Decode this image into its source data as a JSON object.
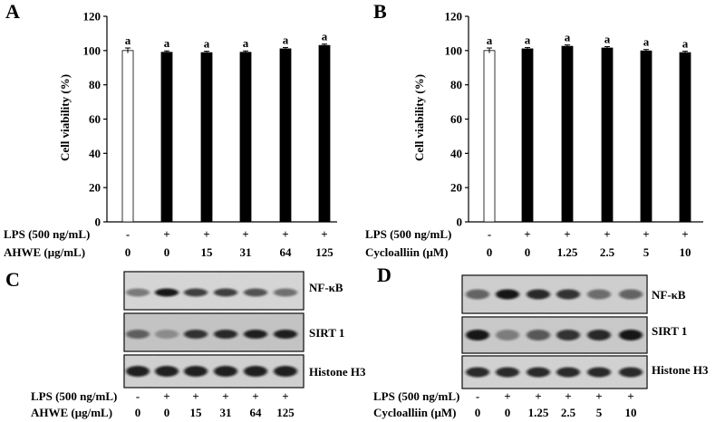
{
  "panels": {
    "A": {
      "letter": "A",
      "lps_label": "LPS (500 ng/mL)",
      "lps": [
        "-",
        "+",
        "+",
        "+",
        "+",
        "+"
      ],
      "treat_label": "AHWE (μg/mL)",
      "treat": [
        "0",
        "0",
        "15",
        "31",
        "64",
        "125"
      ]
    },
    "B": {
      "letter": "B",
      "lps_label": "LPS (500 ng/mL)",
      "lps": [
        "-",
        "+",
        "+",
        "+",
        "+",
        "+"
      ],
      "treat_label": "Cycloalliin (μM)",
      "treat": [
        "0",
        "0",
        "1.25",
        "2.5",
        "5",
        "10"
      ]
    },
    "C": {
      "letter": "C",
      "lps_label": "LPS (500 ng/mL)",
      "lps": [
        "-",
        "+",
        "+",
        "+",
        "+",
        "+"
      ],
      "treat_label": "AHWE (μg/mL)",
      "treat": [
        "0",
        "0",
        "15",
        "31",
        "64",
        "125"
      ],
      "blots": [
        "NF-κB",
        "SIRT 1",
        "Histone H3"
      ]
    },
    "D": {
      "letter": "D",
      "lps_label": "LPS (500 ng/mL)",
      "lps": [
        "-",
        "+",
        "+",
        "+",
        "+",
        "+"
      ],
      "treat_label": "Cycloalliin (μM)",
      "treat": [
        "0",
        "0",
        "1.25",
        "2.5",
        "5",
        "10"
      ],
      "blots": [
        "NF-κB",
        "SIRT 1",
        "Histone H3"
      ]
    }
  },
  "colors": {
    "control_fill": "#ffffff",
    "treated_fill": "#000000",
    "axis": "#000000"
  },
  "chart_data": [
    {
      "type": "bar",
      "panel": "A",
      "ylabel": "Cell viability (%)",
      "ylim": [
        0,
        120
      ],
      "yticks": [
        0,
        20,
        40,
        60,
        80,
        100,
        120
      ],
      "grid": false,
      "values": [
        100,
        99,
        98.8,
        99,
        101,
        103
      ],
      "error": [
        1.5,
        0.8,
        0.8,
        0.8,
        0.8,
        0.8
      ],
      "labels": [
        "a",
        "a",
        "a",
        "a",
        "a",
        "a"
      ]
    },
    {
      "type": "bar",
      "panel": "B",
      "ylabel": "Cell viability (%)",
      "ylim": [
        0,
        120
      ],
      "yticks": [
        0,
        20,
        40,
        60,
        80,
        100,
        120
      ],
      "grid": false,
      "values": [
        100,
        101,
        102.5,
        101.5,
        99.8,
        98.8
      ],
      "error": [
        1.5,
        0.8,
        0.8,
        0.8,
        0.8,
        0.8
      ],
      "labels": [
        "a",
        "a",
        "a",
        "a",
        "a",
        "a"
      ]
    }
  ]
}
